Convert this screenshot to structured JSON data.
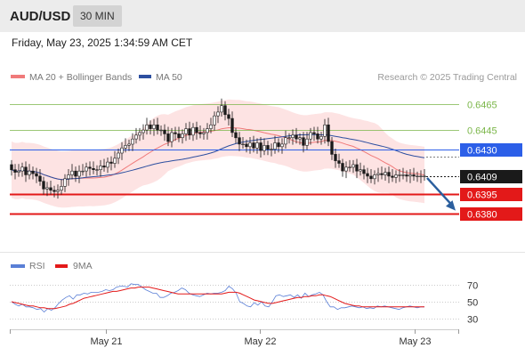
{
  "header": {
    "pair": "AUD/USD",
    "timeframe": "30 MIN",
    "datetime": "Friday, May 23, 2025 1:34:59 AM CET"
  },
  "legend": {
    "bb_label": "MA 20 + Bollinger Bands",
    "ma50_label": "MA 50",
    "credit": "Research © 2025 Trading Central"
  },
  "rsi_legend": {
    "rsi_label": "RSI",
    "ma_label": "9MA"
  },
  "colors": {
    "candle": "#1a1a1a",
    "bollinger_fill": "#fde3e3",
    "ma20": "#f07a7a",
    "ma50": "#2d4fa0",
    "support": "#e31919",
    "pivot": "#2c5fe8",
    "resistance": "#7ab648",
    "current": "#1a1a1a",
    "arrow": "#2b5f9e",
    "rsi": "#5a7fd6",
    "rsi_ma": "#e31919"
  },
  "chart_data": [
    {
      "type": "candlestick",
      "ylim": [
        0.6352,
        0.6477
      ],
      "xticks": [
        "May 21",
        "May 22",
        "May 23"
      ],
      "levels": [
        {
          "value": "0.6465",
          "kind": "resistance"
        },
        {
          "value": "0.6445",
          "kind": "resistance"
        },
        {
          "value": "0.6430",
          "kind": "pivot"
        },
        {
          "value": "0.6409",
          "kind": "current"
        },
        {
          "value": "0.6395",
          "kind": "support"
        },
        {
          "value": "0.6380",
          "kind": "support"
        }
      ],
      "close": [
        0.6414,
        0.6412,
        0.6413,
        0.6416,
        0.641,
        0.6413,
        0.6411,
        0.6409,
        0.6405,
        0.6399,
        0.64,
        0.6398,
        0.6397,
        0.6398,
        0.6401,
        0.6407,
        0.641,
        0.6413,
        0.6409,
        0.6413,
        0.6413,
        0.6416,
        0.6415,
        0.6414,
        0.6414,
        0.6417,
        0.6416,
        0.642,
        0.6419,
        0.6423,
        0.6427,
        0.6431,
        0.6433,
        0.6434,
        0.6438,
        0.6441,
        0.6443,
        0.6445,
        0.6449,
        0.6446,
        0.6449,
        0.6445,
        0.6445,
        0.6442,
        0.6436,
        0.6443,
        0.6442,
        0.6439,
        0.6442,
        0.6446,
        0.6441,
        0.6447,
        0.6443,
        0.6442,
        0.6443,
        0.6446,
        0.6449,
        0.6456,
        0.6459,
        0.6464,
        0.6457,
        0.6454,
        0.6443,
        0.6439,
        0.6434,
        0.6434,
        0.6432,
        0.6435,
        0.6431,
        0.6435,
        0.6429,
        0.6433,
        0.643,
        0.643,
        0.6435,
        0.6432,
        0.6434,
        0.6439,
        0.6439,
        0.6441,
        0.6438,
        0.6439,
        0.6433,
        0.6438,
        0.6443,
        0.6442,
        0.6438,
        0.644,
        0.6449,
        0.6436,
        0.6426,
        0.6421,
        0.6419,
        0.6413,
        0.6416,
        0.6416,
        0.6418,
        0.6413,
        0.6414,
        0.6411,
        0.6409,
        0.6407,
        0.641,
        0.6411,
        0.641,
        0.6412,
        0.6409,
        0.6408,
        0.641,
        0.641,
        0.641,
        0.6409,
        0.641,
        0.6409,
        0.6409,
        0.6409,
        0.6409
      ]
    },
    {
      "type": "line",
      "title": "RSI",
      "yticks": [
        70,
        50,
        30
      ],
      "ylim": [
        22,
        78
      ],
      "rsi": [
        50,
        47,
        45,
        47,
        44,
        44,
        43,
        41,
        42,
        38,
        42,
        40,
        43,
        48,
        52,
        55,
        57,
        53,
        58,
        58,
        60,
        59,
        61,
        61,
        61,
        62,
        64,
        63,
        64,
        67,
        68,
        68,
        67,
        71,
        70,
        70,
        67,
        64,
        62,
        60,
        60,
        55,
        55,
        57,
        60,
        61,
        63,
        66,
        64,
        60,
        58,
        57,
        56,
        58,
        60,
        59,
        60,
        60,
        61,
        63,
        68,
        65,
        60,
        50,
        48,
        45,
        44,
        49,
        46,
        50,
        45,
        44,
        50,
        57,
        58,
        56,
        57,
        58,
        55,
        58,
        54,
        60,
        56,
        58,
        59,
        61,
        58,
        50,
        44,
        44,
        41,
        43,
        43,
        44,
        45,
        44,
        43,
        44,
        42,
        43,
        42,
        45,
        44,
        45,
        44,
        43,
        42,
        41,
        43,
        44,
        45,
        44,
        43,
        44,
        44
      ],
      "ma": [
        50,
        49,
        48,
        47,
        46,
        45,
        45,
        44,
        43,
        43,
        42,
        42,
        42,
        43,
        44,
        45,
        47,
        48,
        50,
        52,
        54,
        55,
        56,
        57,
        58,
        59,
        60,
        61,
        62,
        62,
        63,
        64,
        65,
        66,
        66,
        67,
        67,
        67,
        67,
        66,
        65,
        64,
        63,
        62,
        61,
        60,
        59,
        59,
        59,
        59,
        59,
        59,
        59,
        59,
        59,
        59,
        59,
        59,
        59,
        60,
        61,
        61,
        61,
        60,
        58,
        56,
        54,
        52,
        51,
        50,
        49,
        48,
        48,
        49,
        50,
        51,
        52,
        53,
        54,
        55,
        55,
        56,
        56,
        57,
        57,
        58,
        58,
        57,
        56,
        54,
        52,
        50,
        48,
        47,
        46,
        45,
        45,
        44,
        44,
        44,
        44,
        44,
        44,
        44,
        44,
        44,
        44,
        44,
        44,
        44,
        44,
        44,
        44,
        44,
        44
      ]
    }
  ]
}
